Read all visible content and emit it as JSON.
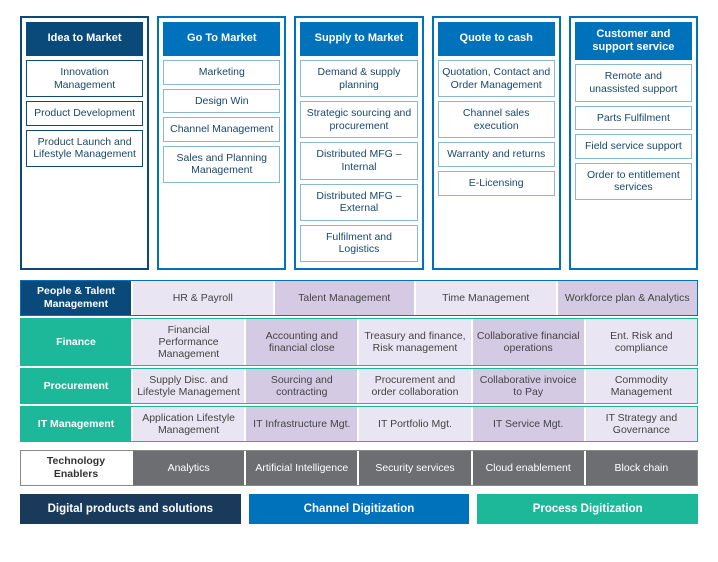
{
  "colors": {
    "dark_blue": "#0a4a7a",
    "mid_blue": "#0072bc",
    "light_border": "#8ab8d1",
    "very_dark_blue": "#1a3a5c",
    "teal": "#1db89a",
    "lavender_light": "#eae5f2",
    "lavender_dark": "#d4cae3",
    "gray": "#6d6e71",
    "white": "#ffffff"
  },
  "top_columns": [
    {
      "header": "Idea to Market",
      "header_bg": "#0a4a7a",
      "border": "#0a4a7a",
      "item_border": "#0a4a7a",
      "items": [
        "Innovation Management",
        "Product Development",
        "Product Launch and Lifestyle Management"
      ]
    },
    {
      "header": "Go To Market",
      "header_bg": "#0072bc",
      "border": "#0072bc",
      "item_border": "#8ab8d1",
      "items": [
        "Marketing",
        "Design Win",
        "Channel Management",
        "Sales and Planning Management"
      ]
    },
    {
      "header": "Supply to Market",
      "header_bg": "#0072bc",
      "border": "#0072bc",
      "item_border": "#8ab8d1",
      "items": [
        "Demand & supply planning",
        "Strategic sourcing and procurement",
        "Distributed MFG – Internal",
        "Distributed MFG – External",
        "Fulfilment and Logistics"
      ]
    },
    {
      "header": "Quote to cash",
      "header_bg": "#0072bc",
      "border": "#0072bc",
      "item_border": "#8ab8d1",
      "items": [
        "Quotation, Contact and Order Management",
        "Channel sales execution",
        "Warranty and returns",
        "E-Licensing"
      ]
    },
    {
      "header": "Customer and support service",
      "header_bg": "#0072bc",
      "border": "#0072bc",
      "item_border": "#8ab8d1",
      "items": [
        "Remote and unassisted support",
        "Parts Fulfilment",
        "Field service support",
        "Order to entitlement services"
      ]
    }
  ],
  "rows": [
    {
      "label": "People & Talent Management",
      "label_bg": "#0a4a7a",
      "border": "#0072bc",
      "cells": [
        "HR & Payroll",
        "Talent Management",
        "Time Management",
        "Workforce plan & Analytics"
      ]
    },
    {
      "label": "Finance",
      "label_bg": "#1db89a",
      "border": "#1db89a",
      "cells": [
        "Financial Performance Management",
        "Accounting and financial close",
        "Treasury and finance, Risk management",
        "Collaborative financial operations",
        "Ent. Risk and compliance"
      ]
    },
    {
      "label": "Procurement",
      "label_bg": "#1db89a",
      "border": "#1db89a",
      "cells": [
        "Supply Disc. and Lifestyle Management",
        "Sourcing and contracting",
        "Procurement and order collaboration",
        "Collaborative invoice to Pay",
        "Commodity Management"
      ]
    },
    {
      "label": "IT Management",
      "label_bg": "#1db89a",
      "border": "#1db89a",
      "cells": [
        "Application Lifestyle Management",
        "IT Infrastructure Mgt.",
        "IT Portfolio Mgt.",
        "IT Service Mgt.",
        "IT Strategy and Governance"
      ]
    }
  ],
  "tech_row": {
    "label": "Technology Enablers",
    "cells": [
      "Analytics",
      "Artificial Intelligence",
      "Security services",
      "Cloud enablement",
      "Block chain"
    ]
  },
  "bottom_bars": [
    {
      "label": "Digital products and solutions",
      "bg": "#1a3a5c"
    },
    {
      "label": "Channel Digitization",
      "bg": "#0072bc"
    },
    {
      "label": "Process Digitization",
      "bg": "#1db89a"
    }
  ],
  "alt_cell_colors": [
    "#eae5f2",
    "#d4cae3"
  ]
}
